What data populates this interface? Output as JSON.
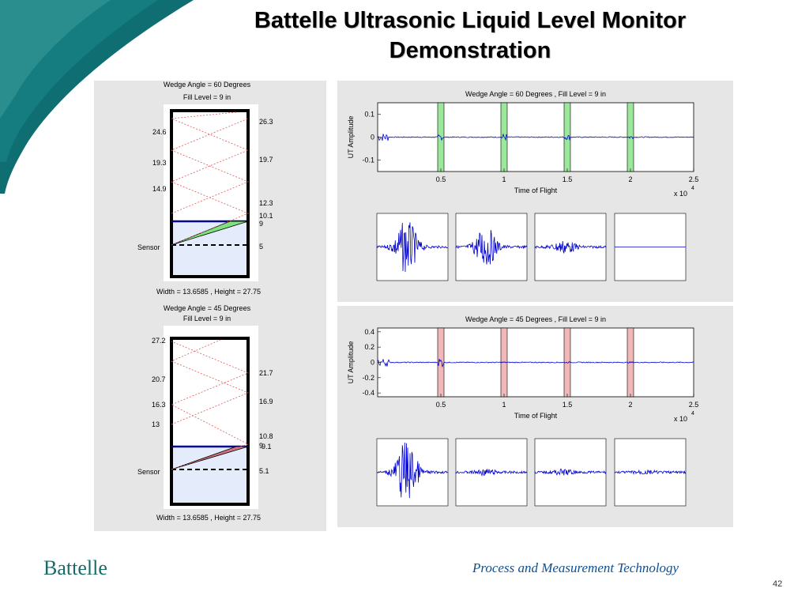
{
  "slide": {
    "title_line1": "Battelle Ultrasonic Liquid Level Monitor",
    "title_line2": "Demonstration",
    "footer_logo": "Battelle",
    "footer_text": "Process and Measurement Technology",
    "page_number": "42"
  },
  "colors": {
    "teal": "#0e6e72",
    "blue_trace": "#0000cc",
    "green_band": "#9be89b",
    "red_band": "#f2b8b8"
  },
  "tank60": {
    "title": "Wedge Angle = 60 Degrees",
    "subtitle": "Fill Level = 9 in",
    "left_labels": [
      "24.6",
      "19.3",
      "14.9"
    ],
    "right_labels": [
      "26.3",
      "19.7",
      "12.3",
      "10.1",
      "9",
      "5"
    ],
    "sensor_label": "Sensor",
    "dims": "Width = 13.6585 , Height = 27.75"
  },
  "tank45": {
    "title": "Wedge Angle = 45 Degrees",
    "subtitle": "Fill Level = 9 in",
    "left_labels": [
      "27.2",
      "20.7",
      "16.3",
      "13"
    ],
    "right_labels": [
      "21.7",
      "16.9",
      "10.8",
      "9",
      "9.1",
      "5.1"
    ],
    "sensor_label": "Sensor",
    "dims": "Width = 13.6585 , Height = 27.75"
  },
  "chart_data": [
    {
      "type": "line",
      "title": "Wedge Angle = 60 Degrees , Fill Level = 9 in",
      "xlabel": "Time of Flight",
      "ylabel": "UT Amplitude",
      "xlim": [
        0,
        2.5
      ],
      "ylim": [
        -0.15,
        0.15
      ],
      "xticks": [
        "0.5",
        "1",
        "1.5",
        "2",
        "2.5"
      ],
      "yticks": [
        "0.1",
        "0",
        "-0.1"
      ],
      "x_multiplier": "x 10",
      "x_exponent": "4",
      "echo_windows": [
        0.5,
        1.0,
        1.5,
        2.0
      ],
      "window_color": "green",
      "echo_amplitudes": [
        0.01,
        0.012,
        0.008,
        0.005
      ]
    },
    {
      "type": "line",
      "title": "Wedge Angle = 45 Degrees , Fill Level = 9 in",
      "xlabel": "Time of Flight",
      "ylabel": "UT Amplitude",
      "xlim": [
        0,
        2.5
      ],
      "ylim": [
        -0.45,
        0.45
      ],
      "xticks": [
        "0.5",
        "1",
        "1.5",
        "2",
        "2.5"
      ],
      "yticks": [
        "0.4",
        "0.2",
        "0",
        "-0.2",
        "-0.4"
      ],
      "x_multiplier": "x 10",
      "x_exponent": "4",
      "echo_windows": [
        0.5,
        1.0,
        1.5,
        2.0
      ],
      "window_color": "red",
      "echo_amplitudes": [
        0.06,
        0.0,
        0.0,
        0.0
      ]
    }
  ]
}
